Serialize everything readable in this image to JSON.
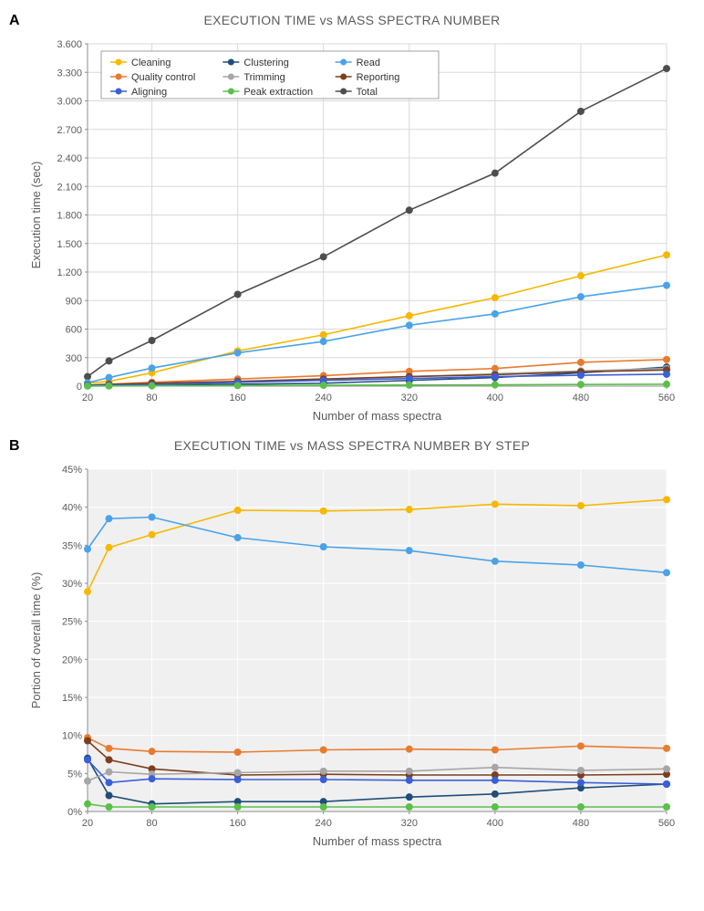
{
  "x_values": [
    20,
    40,
    80,
    160,
    240,
    320,
    400,
    480,
    560
  ],
  "x_ticks": [
    20,
    80,
    160,
    240,
    320,
    400,
    480,
    560
  ],
  "legend_cols": [
    [
      "Cleaning",
      "Quality control",
      "Aligning"
    ],
    [
      "Clustering",
      "Trimming",
      "Peak extraction"
    ],
    [
      "Read",
      "Reporting",
      "Total"
    ]
  ],
  "series": {
    "Cleaning": {
      "color": "#f6b800",
      "marker": "circle"
    },
    "Clustering": {
      "color": "#1f4e79",
      "marker": "circle"
    },
    "Read": {
      "color": "#4aa3e8",
      "marker": "circle"
    },
    "Quality control": {
      "color": "#e87b2e",
      "marker": "circle"
    },
    "Trimming": {
      "color": "#a6a6a6",
      "marker": "circle"
    },
    "Reporting": {
      "color": "#7b3f1e",
      "marker": "circle"
    },
    "Aligning": {
      "color": "#3a5fd8",
      "marker": "circle"
    },
    "Peak extraction": {
      "color": "#5bbf4a",
      "marker": "circle"
    },
    "Total": {
      "color": "#4d4d4d",
      "marker": "circle"
    }
  },
  "chart_a": {
    "title": "EXECUTION TIME vs MASS SPECTRA NUMBER",
    "panel": "A",
    "xlabel": "Number of mass spectra",
    "ylabel": "Execution time (sec)",
    "ylim": [
      0,
      3600
    ],
    "y_ticks": [
      0,
      300,
      600,
      900,
      1200,
      1500,
      1800,
      2100,
      2400,
      2700,
      3000,
      3300,
      3600
    ],
    "y_tick_labels": [
      "0",
      "300",
      "600",
      "900",
      "1.200",
      "1.500",
      "1.800",
      "2.100",
      "2.400",
      "2.700",
      "3.000",
      "3.300",
      "3.600"
    ],
    "data": {
      "Cleaning": [
        30,
        50,
        140,
        370,
        540,
        740,
        930,
        1160,
        1380
      ],
      "Clustering": [
        5,
        8,
        12,
        20,
        30,
        60,
        90,
        140,
        200
      ],
      "Read": [
        35,
        90,
        190,
        350,
        470,
        640,
        760,
        940,
        1060
      ],
      "Quality control": [
        10,
        20,
        40,
        75,
        110,
        155,
        185,
        250,
        280
      ],
      "Trimming": [
        4,
        10,
        20,
        45,
        70,
        100,
        130,
        160,
        185
      ],
      "Reporting": [
        10,
        18,
        30,
        50,
        75,
        100,
        120,
        150,
        170
      ],
      "Aligning": [
        7,
        9,
        15,
        40,
        60,
        80,
        100,
        115,
        125
      ],
      "Peak extraction": [
        1,
        2,
        3,
        6,
        9,
        12,
        14,
        17,
        20
      ],
      "Total": [
        100,
        265,
        480,
        965,
        1360,
        1850,
        2240,
        2890,
        3340
      ]
    },
    "plot_bg": "#ffffff",
    "grid_color": "#d9d9d9",
    "axis_color": "#8c8c8c",
    "text_color": "#5b5b5b",
    "line_width": 1.6,
    "marker_r": 4
  },
  "chart_b": {
    "title": "EXECUTION TIME vs MASS SPECTRA NUMBER BY STEP",
    "panel": "B",
    "xlabel": "Number of mass spectra",
    "ylabel": "Portion of overall time (%)",
    "ylim": [
      0,
      45
    ],
    "y_ticks": [
      0,
      5,
      10,
      15,
      20,
      25,
      30,
      35,
      40,
      45
    ],
    "y_tick_labels": [
      "0%",
      "5%",
      "10%",
      "15%",
      "20%",
      "25%",
      "30%",
      "35%",
      "40%",
      "45%"
    ],
    "data": {
      "Cleaning": [
        28.9,
        34.7,
        36.4,
        39.6,
        39.5,
        39.7,
        40.4,
        40.2,
        41.0
      ],
      "Clustering": [
        7.0,
        2.1,
        1.0,
        1.3,
        1.3,
        1.9,
        2.3,
        3.1,
        3.6
      ],
      "Read": [
        34.5,
        38.5,
        38.7,
        36.0,
        34.8,
        34.3,
        32.9,
        32.4,
        31.4
      ],
      "Quality control": [
        9.7,
        8.3,
        7.9,
        7.8,
        8.1,
        8.2,
        8.1,
        8.6,
        8.3
      ],
      "Trimming": [
        4.0,
        5.2,
        4.9,
        5.1,
        5.3,
        5.3,
        5.8,
        5.4,
        5.6
      ],
      "Reporting": [
        9.3,
        6.8,
        5.6,
        4.8,
        4.9,
        4.8,
        4.8,
        4.8,
        4.9
      ],
      "Aligning": [
        6.8,
        3.8,
        4.3,
        4.2,
        4.2,
        4.1,
        4.1,
        3.8,
        3.6
      ],
      "Peak extraction": [
        1.0,
        0.6,
        0.6,
        0.6,
        0.6,
        0.6,
        0.6,
        0.6,
        0.6
      ]
    },
    "plot_bg": "#f0f0f0",
    "grid_color": "#ffffff",
    "axis_color": "#8c8c8c",
    "text_color": "#5b5b5b",
    "line_width": 1.6,
    "marker_r": 4
  },
  "geom": {
    "outer_w": 720,
    "outer_h_a": 430,
    "outer_h_b": 430,
    "margin": {
      "l": 70,
      "r": 15,
      "t": 10,
      "b": 45
    }
  },
  "font": {
    "axis_label_size": 13,
    "tick_size": 11,
    "legend_size": 11,
    "title_size": 14
  }
}
